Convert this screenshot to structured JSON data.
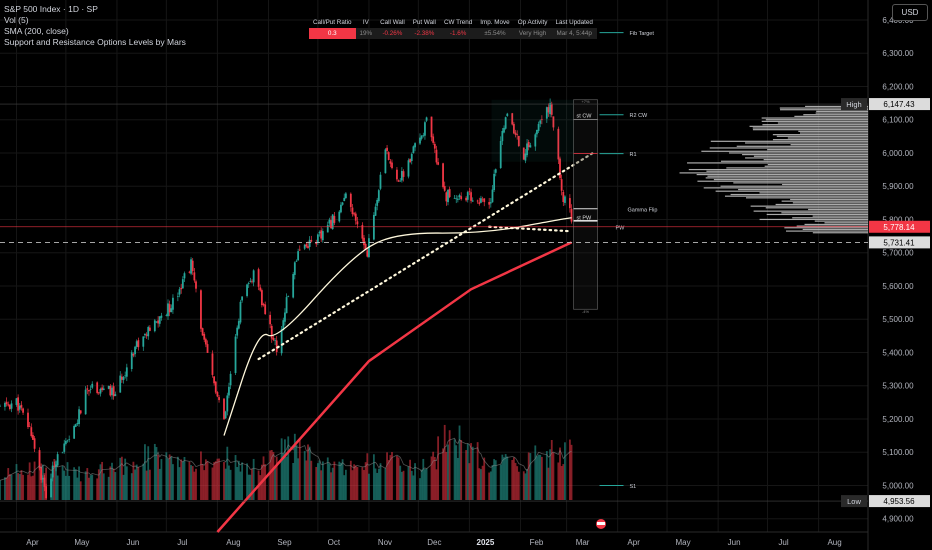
{
  "legend": {
    "symbol_line": "S&P 500 Index · 1D · SP",
    "vol_line": "Vol (5)",
    "sma_line": "SMA (200, close)",
    "indicator_line": "Support and Resistance Options Levels by Mars"
  },
  "currency": "USD",
  "options_table": {
    "headers": [
      "Call/Put Ratio",
      "IV",
      "Call Wall",
      "Put Wall",
      "CW Trend",
      "Imp. Move",
      "Op Activity",
      "Last Updated"
    ],
    "values": [
      "0.3",
      "19%",
      "-0.26%",
      "-2.38%",
      "-1.6%",
      "±5.54%",
      "Very High",
      "Mar 4, 5:44p"
    ]
  },
  "colors": {
    "up": "#26a69a",
    "down": "#f23645",
    "sma": "#f23645",
    "trend": "#fff8dc",
    "grid": "#161616",
    "text": "#d1d4dc",
    "level": "#26a69a"
  },
  "chart_data": {
    "type": "candlestick",
    "ylim": [
      4860,
      6460
    ],
    "y_ticks": [
      4900,
      5000,
      5100,
      5200,
      5300,
      5400,
      5500,
      5600,
      5700,
      5800,
      5900,
      6000,
      6100,
      6200,
      6300,
      6400
    ],
    "y_tick_labels": [
      "4,900.00",
      "5,000.00",
      "5,100.00",
      "5,200.00",
      "5,300.00",
      "5,400.00",
      "5,500.00",
      "5,600.00",
      "5,700.00",
      "5,800.00",
      "5,900.00",
      "6,000.00",
      "6,100.00",
      "6,200.00",
      "6,300.00",
      "6,400.00"
    ],
    "x_months": [
      "Apr",
      "May",
      "Jun",
      "Jul",
      "Aug",
      "Sep",
      "Oct",
      "Nov",
      "Dec",
      "2025",
      "Feb",
      "Mar",
      "Apr",
      "May",
      "Jun",
      "Jul",
      "Aug"
    ],
    "x_month_dates": [
      "2024-04-01",
      "2024-05-01",
      "2024-06-01",
      "2024-07-01",
      "2024-08-01",
      "2024-09-01",
      "2024-10-01",
      "2024-11-01",
      "2024-12-01",
      "2025-01-01",
      "2025-02-01",
      "2025-03-01",
      "2025-04-01",
      "2025-05-01",
      "2025-06-01",
      "2025-07-01",
      "2025-08-01"
    ],
    "date_range": [
      "2024-03-22",
      "2025-08-31"
    ],
    "last_date": "2025-03-04",
    "close_path": [
      [
        "2024-03-22",
        5234
      ],
      [
        "2024-04-01",
        5250
      ],
      [
        "2024-04-10",
        5160
      ],
      [
        "2024-04-19",
        4967
      ],
      [
        "2024-04-26",
        5100
      ],
      [
        "2024-05-03",
        5127
      ],
      [
        "2024-05-15",
        5300
      ],
      [
        "2024-05-31",
        5277
      ],
      [
        "2024-06-12",
        5420
      ],
      [
        "2024-06-21",
        5465
      ],
      [
        "2024-07-03",
        5537
      ],
      [
        "2024-07-16",
        5667
      ],
      [
        "2024-07-24",
        5427
      ],
      [
        "2024-08-05",
        5186
      ],
      [
        "2024-08-15",
        5543
      ],
      [
        "2024-08-23",
        5634
      ],
      [
        "2024-09-06",
        5408
      ],
      [
        "2024-09-19",
        5713
      ],
      [
        "2024-10-04",
        5751
      ],
      [
        "2024-10-18",
        5864
      ],
      [
        "2024-10-31",
        5705
      ],
      [
        "2024-11-11",
        6001
      ],
      [
        "2024-11-20",
        5917
      ],
      [
        "2024-12-06",
        6090
      ],
      [
        "2024-12-18",
        5872
      ],
      [
        "2025-01-02",
        5868
      ],
      [
        "2025-01-13",
        5836
      ],
      [
        "2025-01-23",
        6118
      ],
      [
        "2025-02-03",
        5994
      ],
      [
        "2025-02-19",
        6144
      ],
      [
        "2025-02-27",
        5861
      ],
      [
        "2025-03-03",
        5849
      ],
      [
        "2025-03-04",
        5778
      ]
    ],
    "sma200_path": [
      [
        "2024-08-01",
        4860
      ],
      [
        "2024-11-01",
        5374
      ],
      [
        "2025-01-02",
        5590
      ],
      [
        "2025-03-04",
        5731
      ]
    ],
    "sma5_path": [
      [
        "2024-08-05",
        5150
      ],
      [
        "2024-08-26",
        5470
      ],
      [
        "2024-09-06",
        5435
      ],
      [
        "2024-10-20",
        5680
      ],
      [
        "2024-11-15",
        5760
      ],
      [
        "2025-01-10",
        5758
      ],
      [
        "2025-02-25",
        5800
      ],
      [
        "2025-03-04",
        5805
      ]
    ],
    "dotted_trend": [
      [
        "2024-08-26",
        5380
      ],
      [
        "2025-03-17",
        6000
      ]
    ],
    "dotted_support": [
      [
        "2025-01-13",
        5778
      ],
      [
        "2025-03-02",
        5765
      ]
    ],
    "volume_scale": [
      0,
      4200
    ],
    "volume_path": [
      [
        "2024-03-22",
        1400
      ],
      [
        "2024-04-19",
        2200
      ],
      [
        "2024-05-10",
        1500
      ],
      [
        "2024-06-21",
        2600
      ],
      [
        "2024-07-12",
        1900
      ],
      [
        "2024-08-05",
        2500
      ],
      [
        "2024-08-21",
        1700
      ],
      [
        "2024-09-20",
        3400
      ],
      [
        "2024-10-10",
        1700
      ],
      [
        "2024-11-06",
        2300
      ],
      [
        "2024-12-06",
        1800
      ],
      [
        "2024-12-20",
        3800
      ],
      [
        "2025-01-10",
        2300
      ],
      [
        "2025-02-03",
        2200
      ],
      [
        "2025-02-28",
        2900
      ],
      [
        "2025-03-04",
        3200
      ]
    ],
    "value_labels": [
      {
        "label": "High",
        "value": "6,147.43"
      },
      {
        "label": "",
        "value": "5,778.14"
      },
      {
        "label": "",
        "value": "5,731.41"
      },
      {
        "label": "Low",
        "value": "4,953.56"
      }
    ],
    "option_levels": [
      {
        "label": "Fib Target",
        "value": 6362
      },
      {
        "label": "R2 CW",
        "value": 6115
      },
      {
        "label": "R1",
        "value": 5998
      },
      {
        "label": "Gamma Flip",
        "value": 5832
      },
      {
        "label": "PW",
        "value": 5797
      },
      {
        "label": "S1",
        "value": 5000
      }
    ],
    "range_box": {
      "top": 6160,
      "bottom": 5530,
      "top_label": "+7%",
      "bottom_label": "-4%",
      "levels": [
        {
          "label": "st CW",
          "value": 6110
        },
        {
          "label": "st PW",
          "value": 5803
        }
      ]
    }
  }
}
